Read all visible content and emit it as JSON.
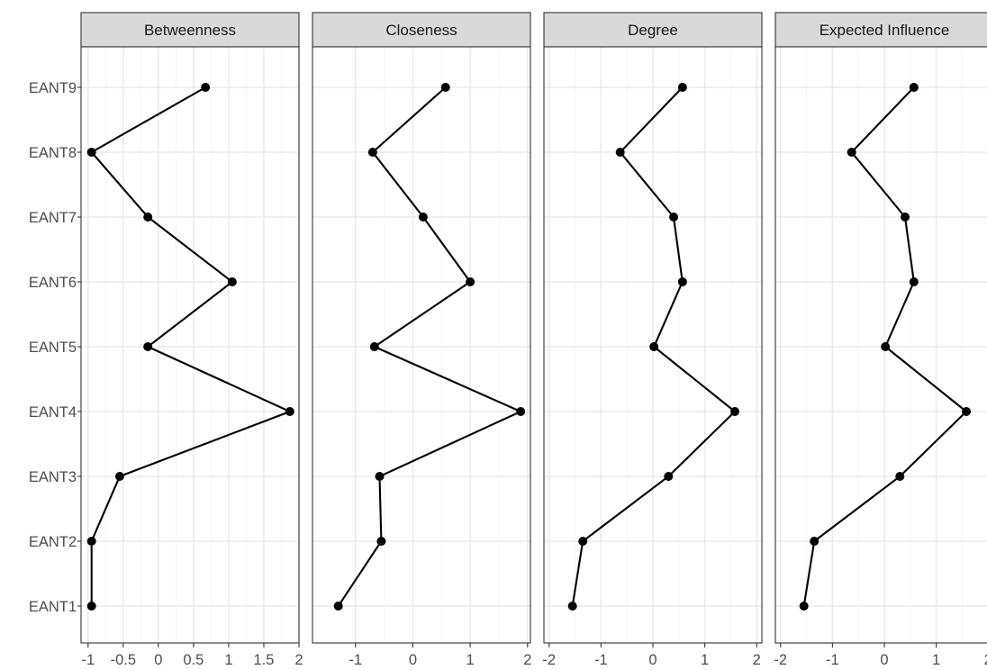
{
  "chart_data": {
    "type": "line",
    "layout": "faceted",
    "grid": true,
    "categories": [
      "EANT1",
      "EANT2",
      "EANT3",
      "EANT4",
      "EANT5",
      "EANT6",
      "EANT7",
      "EANT8",
      "EANT9"
    ],
    "facets": [
      {
        "title": "Betweenness",
        "xlim": [
          -1.1,
          2.0
        ],
        "xticks": [
          -1,
          -0.5,
          0,
          0.5,
          1,
          1.5,
          2
        ],
        "xtick_labels": [
          "-1",
          "-0.5",
          "0",
          "0.5",
          "1",
          "1.5",
          "2"
        ],
        "values": [
          -0.95,
          -0.95,
          -0.55,
          1.87,
          -0.15,
          1.05,
          -0.15,
          -0.95,
          0.67
        ]
      },
      {
        "title": "Closeness",
        "xlim": [
          -1.75,
          2.05
        ],
        "xticks": [
          -1,
          0,
          1,
          2
        ],
        "xtick_labels": [
          "-1",
          "0",
          "1",
          "2"
        ],
        "values": [
          -1.3,
          -0.55,
          -0.58,
          1.88,
          -0.67,
          1.0,
          0.18,
          -0.7,
          0.57
        ]
      },
      {
        "title": "Degree",
        "xlim": [
          -2.1,
          2.1
        ],
        "xticks": [
          -2,
          -1,
          0,
          1,
          2
        ],
        "xtick_labels": [
          "-2",
          "-1",
          "0",
          "1",
          "2"
        ],
        "values": [
          -1.55,
          -1.35,
          0.3,
          1.58,
          0.02,
          0.57,
          0.4,
          -0.63,
          0.57
        ]
      },
      {
        "title": "Expected Influence",
        "xlim": [
          -2.1,
          2.1
        ],
        "xticks": [
          -2,
          -1,
          0,
          1,
          2
        ],
        "xtick_labels": [
          "-2",
          "-1",
          "0",
          "1",
          "2"
        ],
        "values": [
          -1.55,
          -1.35,
          0.3,
          1.58,
          0.02,
          0.57,
          0.4,
          -0.63,
          0.57
        ]
      }
    ]
  }
}
